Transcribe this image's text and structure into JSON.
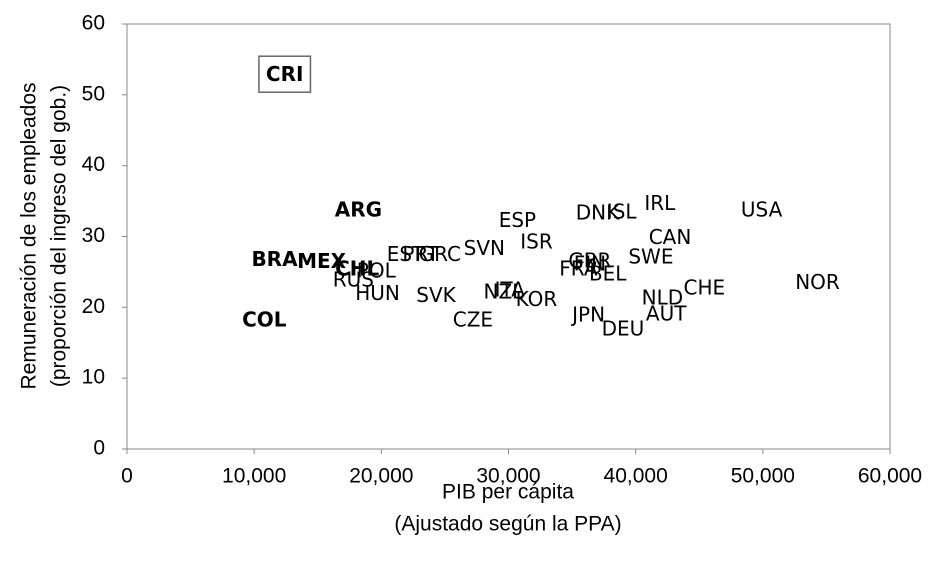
{
  "chart_data": {
    "type": "scatter",
    "xlabel": [
      "PIB per cápita",
      "(Ajustado según la PPA)"
    ],
    "ylabel": [
      "Remuneración de los empleados",
      "(proporción del ingreso del gob.)"
    ],
    "xlim": [
      0,
      60000
    ],
    "ylim": [
      0,
      60
    ],
    "xticks": [
      0,
      {
        "value": 10000,
        "label": "10,000"
      },
      {
        "value": 20000,
        "label": "20,000"
      },
      {
        "value": 30000,
        "label": "30,000"
      },
      {
        "value": 40000,
        "label": "40,000"
      },
      {
        "value": 50000,
        "label": "50,000"
      },
      {
        "value": 60000,
        "label": "60,000"
      }
    ],
    "yticks": [
      0,
      10,
      20,
      30,
      40,
      50,
      60
    ],
    "grid": false,
    "color": "#000000",
    "points": [
      {
        "label": "CRI",
        "x": 12400,
        "y": 52.7,
        "bold": true,
        "box": true
      },
      {
        "label": "ARG",
        "x": 18200,
        "y": 33.6,
        "bold": true
      },
      {
        "label": "BRA",
        "x": 11600,
        "y": 26.6,
        "bold": true
      },
      {
        "label": "MEX",
        "x": 15300,
        "y": 26.3,
        "bold": true
      },
      {
        "label": "CHL",
        "x": 18100,
        "y": 25.3,
        "bold": true
      },
      {
        "label": "COL",
        "x": 10800,
        "y": 18.1,
        "bold": true
      },
      {
        "label": "POL",
        "x": 19600,
        "y": 25.0
      },
      {
        "label": "RUS",
        "x": 17800,
        "y": 23.7
      },
      {
        "label": "HUN",
        "x": 19700,
        "y": 21.8
      },
      {
        "label": "EST",
        "x": 21900,
        "y": 27.3
      },
      {
        "label": "PRT",
        "x": 23100,
        "y": 27.3
      },
      {
        "label": "GRC",
        "x": 24600,
        "y": 27.3
      },
      {
        "label": "SVN",
        "x": 28100,
        "y": 28.2
      },
      {
        "label": "SVK",
        "x": 24300,
        "y": 21.5
      },
      {
        "label": "ESP",
        "x": 30700,
        "y": 32.1
      },
      {
        "label": "ISR",
        "x": 32200,
        "y": 29.1
      },
      {
        "label": "ITA",
        "x": 30100,
        "y": 22.3
      },
      {
        "label": "NZL",
        "x": 29600,
        "y": 22.0
      },
      {
        "label": "KOR",
        "x": 32200,
        "y": 21.0
      },
      {
        "label": "CZE",
        "x": 27200,
        "y": 18.1
      },
      {
        "label": "DNK",
        "x": 37000,
        "y": 33.2
      },
      {
        "label": "ISL",
        "x": 38900,
        "y": 33.3
      },
      {
        "label": "IRL",
        "x": 41900,
        "y": 34.5
      },
      {
        "label": "USA",
        "x": 49900,
        "y": 33.6
      },
      {
        "label": "CAN",
        "x": 42700,
        "y": 29.7
      },
      {
        "label": "SWE",
        "x": 41200,
        "y": 27.0
      },
      {
        "label": "GBR",
        "x": 36400,
        "y": 26.4
      },
      {
        "label": "FRA",
        "x": 35500,
        "y": 25.3
      },
      {
        "label": "FIN",
        "x": 36400,
        "y": 26.0
      },
      {
        "label": "BEL",
        "x": 37800,
        "y": 24.6
      },
      {
        "label": "CHE",
        "x": 45400,
        "y": 22.6
      },
      {
        "label": "NOR",
        "x": 54300,
        "y": 23.4
      },
      {
        "label": "NLD",
        "x": 42100,
        "y": 21.2
      },
      {
        "label": "AUT",
        "x": 42400,
        "y": 18.9
      },
      {
        "label": "JPN",
        "x": 36300,
        "y": 18.8
      },
      {
        "label": "DEU",
        "x": 39000,
        "y": 16.8
      }
    ]
  }
}
